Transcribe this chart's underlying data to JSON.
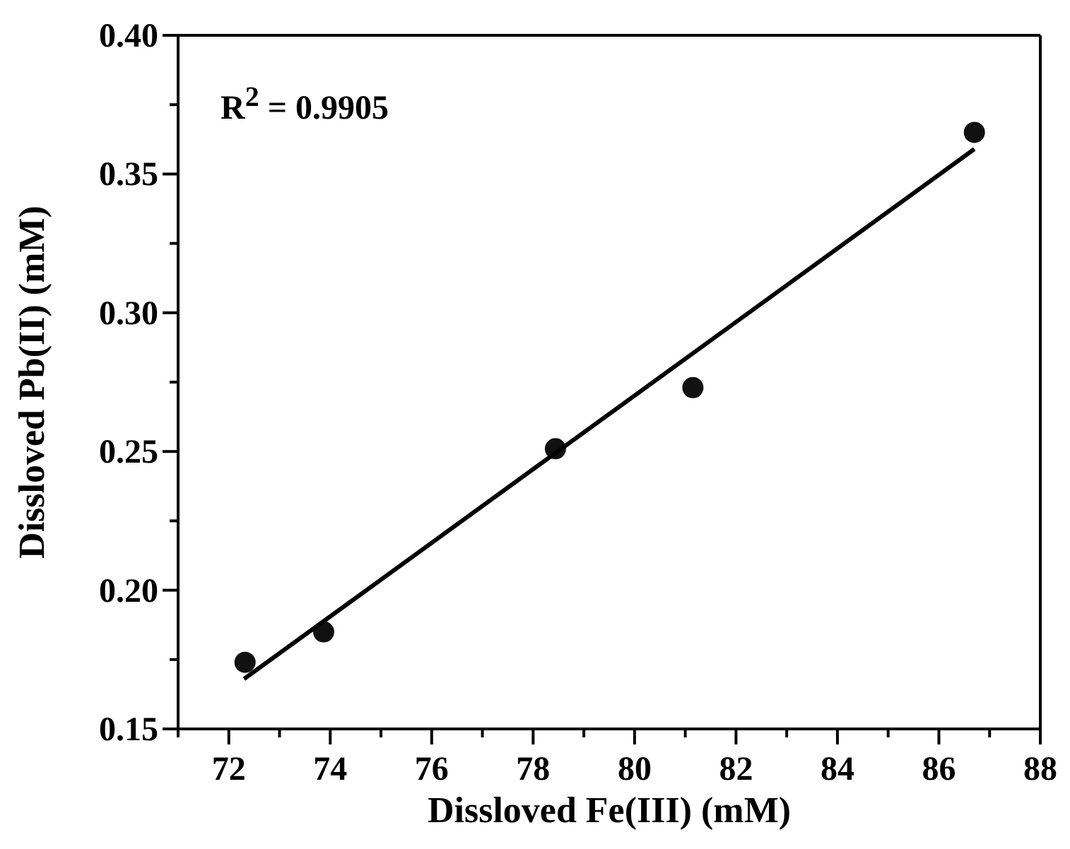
{
  "chart_data": {
    "type": "scatter",
    "xlabel": "Dissloved Fe(III) (mM)",
    "ylabel": "Dissloved Pb(II) (mM)",
    "annotations": [
      "R$^{2}$ = 0.9905"
    ],
    "series": [
      {
        "color": "#111111",
        "x": [
          72.32,
          73.87,
          78.44,
          81.15,
          86.7
        ],
        "values": [
          0.174,
          0.185,
          0.251,
          0.273,
          0.365
        ]
      },
      {
        "type": "line",
        "color": "#000000",
        "marker": "none",
        "x": [
          72.3,
          86.7
        ],
        "values": [
          0.168,
          0.359
        ]
      }
    ],
    "xlim": [
      71,
      88
    ],
    "xticks": [
      {
        "value": 71,
        "label": null
      },
      72,
      {
        "value": 73,
        "label": null
      },
      74,
      {
        "value": 75,
        "label": null
      },
      76,
      {
        "value": 77,
        "label": null
      },
      78,
      {
        "value": 79,
        "label": null
      },
      80,
      {
        "value": 81,
        "label": null
      },
      82,
      {
        "value": 83,
        "label": null
      },
      84,
      {
        "value": 85,
        "label": null
      },
      86,
      {
        "value": 87,
        "label": null
      },
      88
    ],
    "ylim": [
      0.15,
      0.4
    ],
    "yticks": [
      {
        "value": 0.15,
        "label": "0.15"
      },
      {
        "value": 0.175,
        "label": null
      },
      {
        "value": 0.2,
        "label": "0.20"
      },
      {
        "value": 0.225,
        "label": null
      },
      {
        "value": 0.25,
        "label": "0.25"
      },
      {
        "value": 0.275,
        "label": null
      },
      {
        "value": 0.3,
        "label": "0.30"
      },
      {
        "value": 0.325,
        "label": null
      },
      {
        "value": 0.35,
        "label": "0.35"
      },
      {
        "value": 0.375,
        "label": null
      },
      {
        "value": 0.4,
        "label": "0.40"
      }
    ]
  }
}
